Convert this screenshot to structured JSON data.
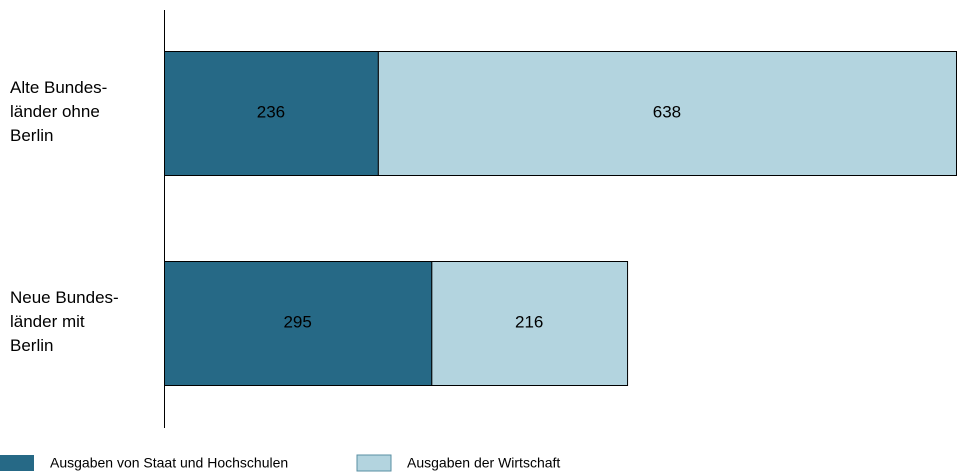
{
  "chart_data": {
    "type": "stacked-bar-horizontal",
    "categories": [
      "Alte Bundes-\nländer ohne\nBerlin",
      "Neue Bundes-\nländer mit\nBerlin"
    ],
    "series": [
      {
        "name": "Ausgaben von Staat und Hochschulen",
        "color": "#266986",
        "label_color": "#ffffff",
        "values": [
          236,
          295
        ]
      },
      {
        "name": "Ausgaben der Wirtschaft",
        "color": "#b3d4df",
        "label_color": "#000000",
        "values": [
          638,
          216
        ]
      }
    ]
  }
}
